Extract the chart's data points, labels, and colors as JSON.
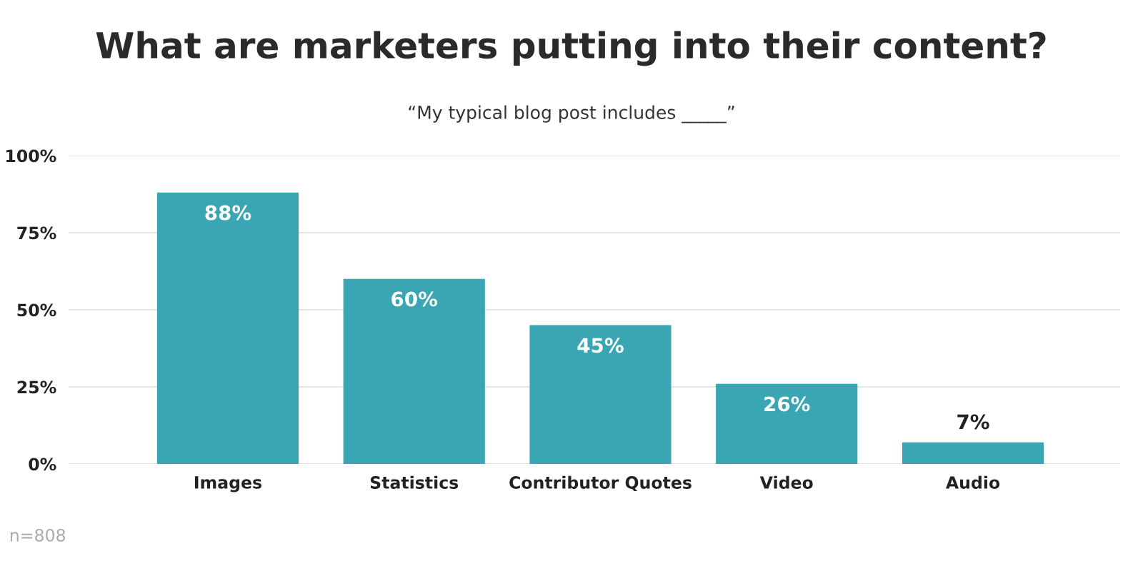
{
  "chart_data": {
    "type": "bar",
    "title": "What are marketers putting into their content?",
    "subtitle": "“My typical blog post includes _____”",
    "categories": [
      "Images",
      "Statistics",
      "Contributor Quotes",
      "Video",
      "Audio"
    ],
    "values": [
      88,
      60,
      45,
      26,
      7
    ],
    "value_labels": [
      "88%",
      "60%",
      "45%",
      "26%",
      "7%"
    ],
    "color": "#3aa6b4",
    "ylim": [
      0,
      100
    ],
    "yticks": [
      {
        "value": 0,
        "label": "0%"
      },
      {
        "value": 25,
        "label": "25%"
      },
      {
        "value": 50,
        "label": "50%"
      },
      {
        "value": 75,
        "label": "75%"
      },
      {
        "value": 100,
        "label": "100%"
      }
    ],
    "grid": "y",
    "annotations": [
      "n=808"
    ]
  }
}
